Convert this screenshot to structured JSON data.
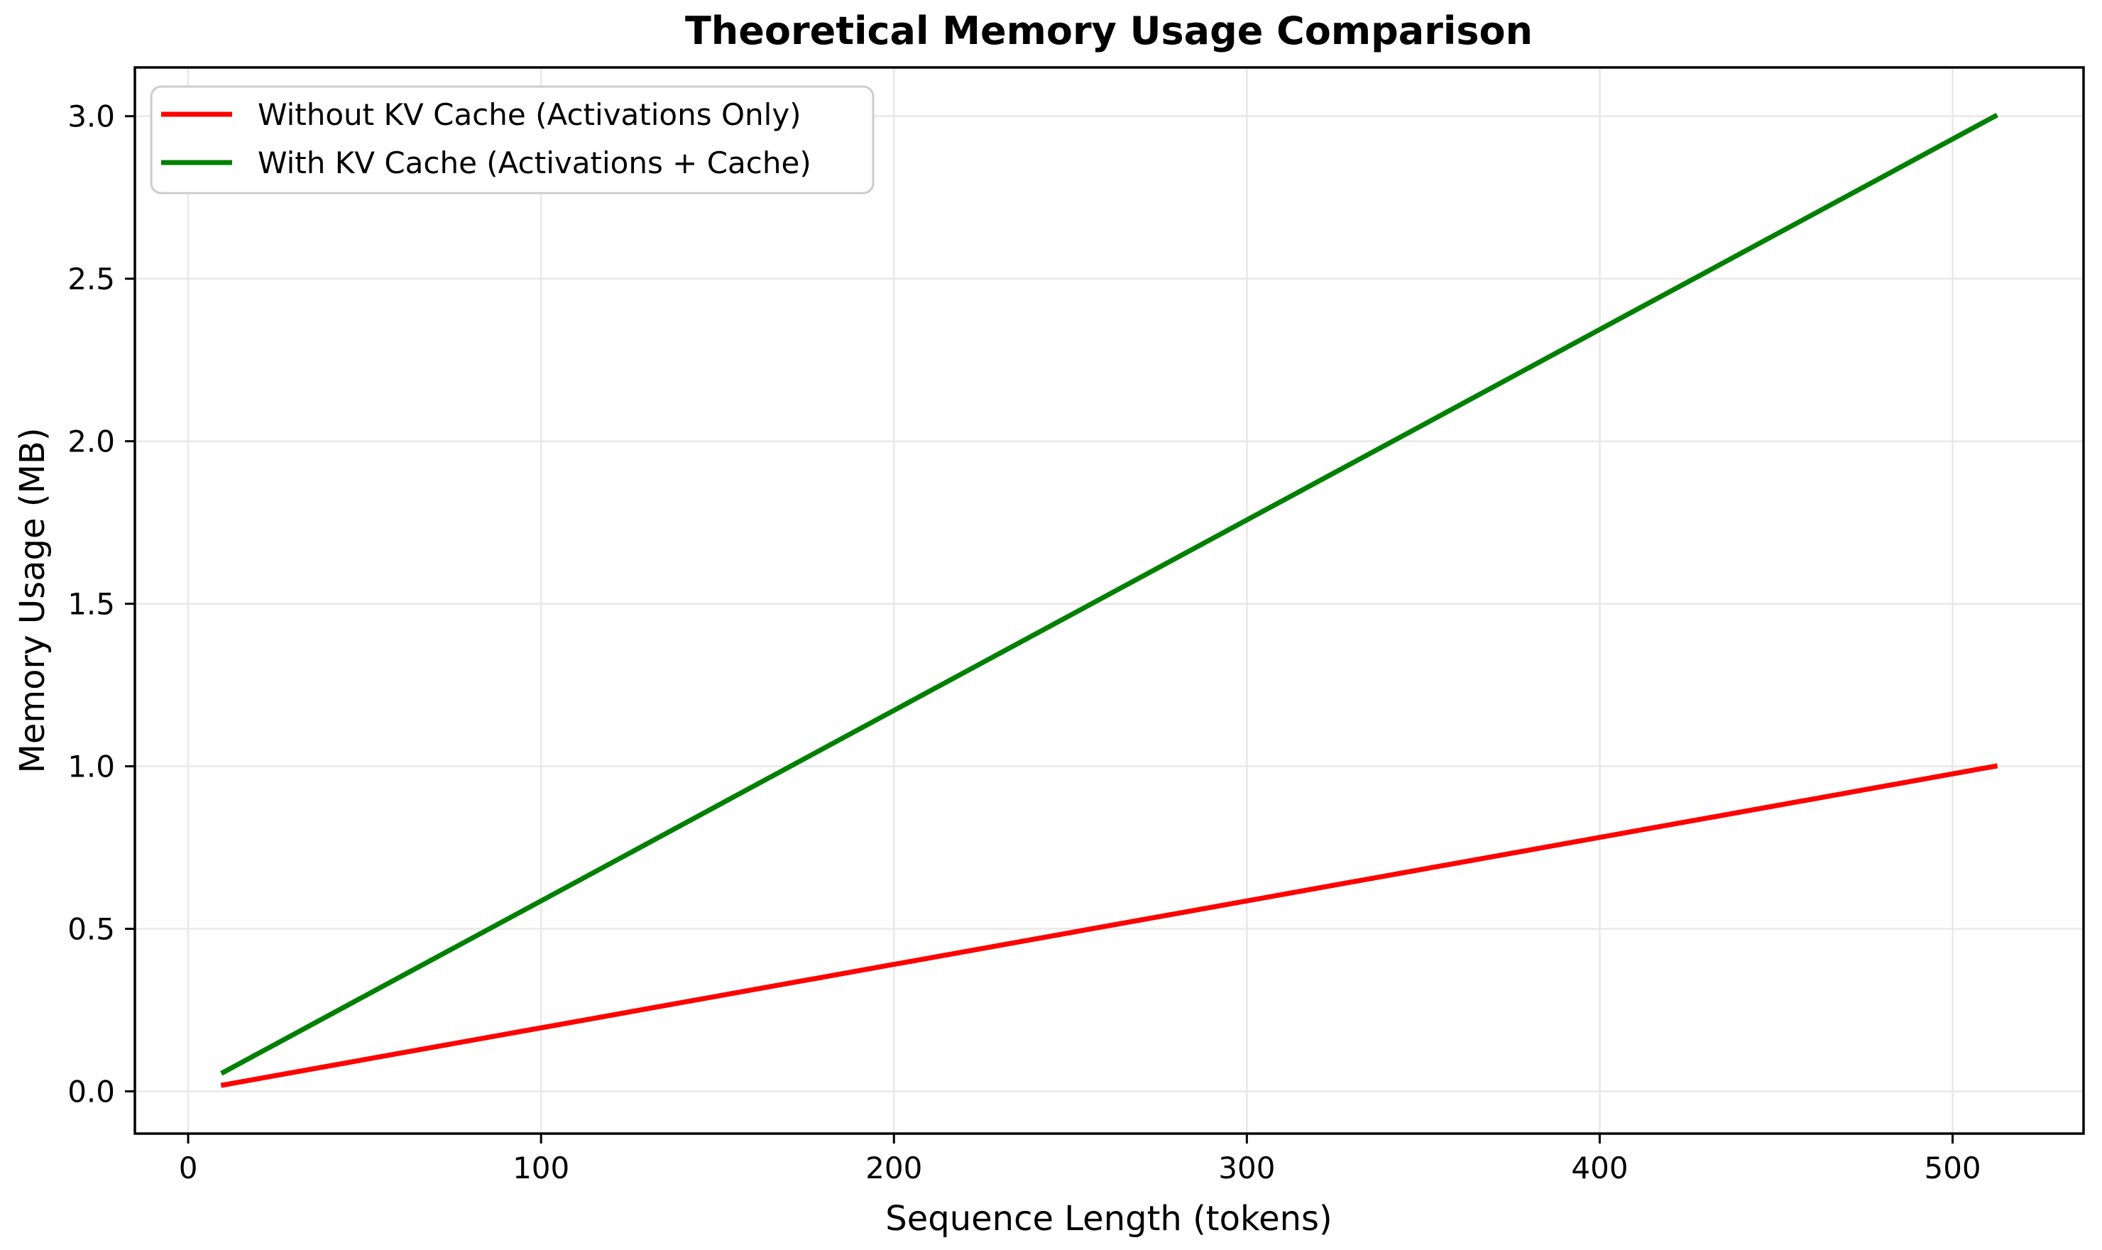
{
  "chart_data": {
    "type": "line",
    "title": "Theoretical Memory Usage Comparison",
    "xlabel": "Sequence Length (tokens)",
    "ylabel": "Memory Usage (MB)",
    "x": [
      10,
      50,
      100,
      150,
      200,
      250,
      300,
      350,
      400,
      450,
      512
    ],
    "series": [
      {
        "name": "Without KV Cache (Activations Only)",
        "color": "#ff0000",
        "values": [
          0.0195,
          0.0977,
          0.1953,
          0.293,
          0.3906,
          0.4883,
          0.5859,
          0.6836,
          0.7813,
          0.8789,
          1.0
        ]
      },
      {
        "name": "With KV Cache (Activations + Cache)",
        "color": "#008000",
        "values": [
          0.0586,
          0.293,
          0.5859,
          0.8789,
          1.1719,
          1.4648,
          1.7578,
          2.0508,
          2.3438,
          2.6367,
          3.0
        ]
      }
    ],
    "xticks": [
      "0",
      "100",
      "200",
      "300",
      "400",
      "500"
    ],
    "yticks": [
      "0.0",
      "0.5",
      "1.0",
      "1.5",
      "2.0",
      "2.5",
      "3.0"
    ],
    "xlim": [
      -15.1,
      537.1
    ],
    "ylim": [
      -0.13,
      3.15
    ],
    "grid": true,
    "legend_position": "upper left",
    "colors": {
      "grid": "#e8e8e8",
      "spine": "#000000",
      "text": "#000000",
      "legend_border": "#cccccc",
      "background": "#ffffff"
    }
  }
}
